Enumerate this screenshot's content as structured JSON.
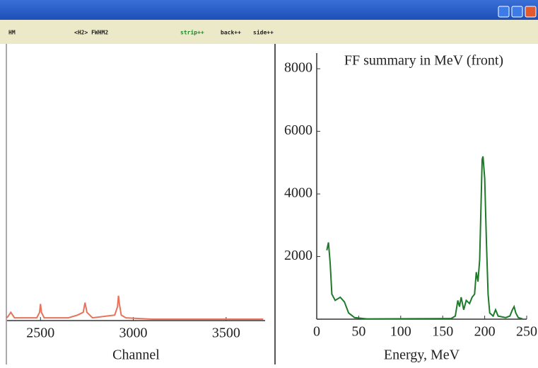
{
  "toolbar": {
    "items": [
      "HM",
      "<H2> FWHM2",
      "strip++",
      "back++",
      "side++"
    ]
  },
  "chart_data": [
    {
      "type": "line",
      "x_label": "Channel",
      "x": [
        2320,
        2340,
        2360,
        2400,
        2480,
        2495,
        2500,
        2505,
        2520,
        2650,
        2700,
        2730,
        2740,
        2750,
        2780,
        2900,
        2915,
        2920,
        2925,
        2935,
        2960,
        3100,
        3400,
        3700
      ],
      "values": [
        1,
        3,
        1,
        1,
        1,
        3,
        6,
        3,
        1,
        1,
        2,
        3,
        6.5,
        3,
        1,
        2,
        5,
        9,
        6,
        2,
        1,
        0.5,
        0.5,
        0.5
      ],
      "color": "#e8735a",
      "xlim": [
        2320,
        3710
      ],
      "ylim": [
        0,
        100
      ],
      "xticks": [
        2500,
        3000,
        3500
      ],
      "grid": false
    },
    {
      "type": "line",
      "title": "FF summary in MeV (front)",
      "x_label": "Energy, MeV",
      "x": [
        12,
        14,
        16,
        18,
        22,
        28,
        33,
        38,
        45,
        60,
        160,
        165,
        168,
        170,
        172,
        175,
        178,
        182,
        185,
        188,
        190,
        192,
        194,
        196,
        197,
        198,
        200,
        202,
        204,
        206,
        210,
        213,
        216,
        225,
        230,
        233,
        235,
        237,
        240,
        245
      ],
      "values": [
        2200,
        2450,
        1800,
        800,
        600,
        700,
        550,
        200,
        50,
        10,
        20,
        100,
        600,
        400,
        700,
        300,
        600,
        500,
        700,
        800,
        1500,
        1200,
        1900,
        4000,
        5100,
        5200,
        4500,
        2500,
        800,
        200,
        100,
        300,
        100,
        50,
        100,
        300,
        400,
        200,
        50,
        10
      ],
      "color": "#1e7a2a",
      "xlim": [
        0,
        250
      ],
      "ylim": [
        0,
        8500
      ],
      "xticks": [
        0,
        50,
        100,
        150,
        200,
        250
      ],
      "yticks": [
        2000,
        4000,
        6000,
        8000
      ],
      "grid": false
    }
  ]
}
